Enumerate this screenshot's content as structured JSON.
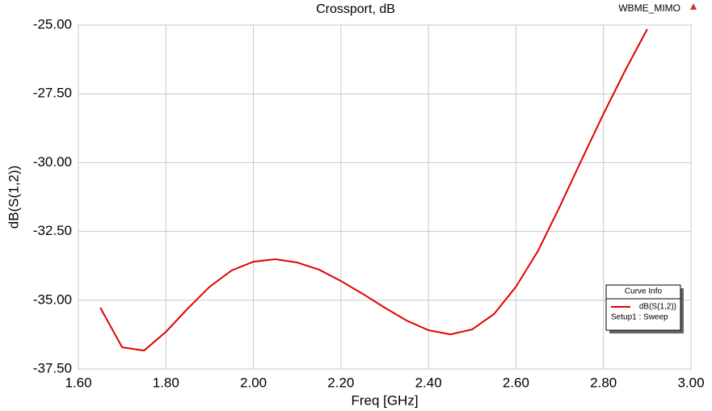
{
  "chart_data": {
    "type": "line",
    "title": "Crossport, dB",
    "project": "WBME_MIMO",
    "x_label": "Freq [GHz]",
    "y_label": "dB(S(1,2))",
    "legend_title": "Curve Info",
    "legend_setup": "Setup1 : Sweep",
    "x": [
      1.65,
      1.7,
      1.75,
      1.8,
      1.85,
      1.9,
      1.95,
      2.0,
      2.05,
      2.1,
      2.15,
      2.2,
      2.25,
      2.3,
      2.35,
      2.4,
      2.45,
      2.5,
      2.55,
      2.6,
      2.65,
      2.7,
      2.75,
      2.8,
      2.85,
      2.9
    ],
    "series": [
      {
        "name": "dB(S(1,2))",
        "color": "#e00000",
        "values": [
          -35.27,
          -36.71,
          -36.83,
          -36.15,
          -35.3,
          -34.51,
          -33.92,
          -33.6,
          -33.51,
          -33.63,
          -33.89,
          -34.3,
          -34.77,
          -35.27,
          -35.74,
          -36.09,
          -36.24,
          -36.06,
          -35.5,
          -34.51,
          -33.22,
          -31.6,
          -29.9,
          -28.23,
          -26.64,
          -25.15
        ]
      }
    ],
    "xlim": [
      1.6,
      3.0
    ],
    "xticks": [
      {
        "value": 1.6,
        "label": "1.60"
      },
      {
        "value": 1.8,
        "label": "1.80"
      },
      {
        "value": 2.0,
        "label": "2.00"
      },
      {
        "value": 2.2,
        "label": "2.20"
      },
      {
        "value": 2.4,
        "label": "2.40"
      },
      {
        "value": 2.6,
        "label": "2.60"
      },
      {
        "value": 2.8,
        "label": "2.80"
      },
      {
        "value": 3.0,
        "label": "3.00"
      }
    ],
    "ylim": [
      -37.5,
      -25
    ],
    "yticks": [
      {
        "value": -37.5,
        "label": "-37.50"
      },
      {
        "value": -35,
        "label": "-35.00"
      },
      {
        "value": -32.5,
        "label": "-32.50"
      },
      {
        "value": -30,
        "label": "-30.00"
      },
      {
        "value": -27.5,
        "label": "-27.50"
      },
      {
        "value": -25,
        "label": "-25.00"
      }
    ],
    "grid": true
  }
}
